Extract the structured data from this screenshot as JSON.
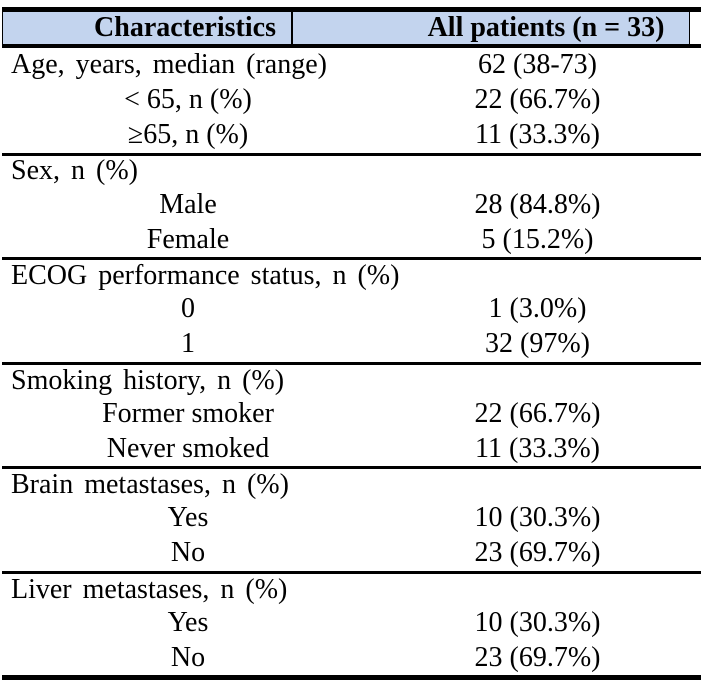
{
  "table": {
    "header": {
      "col1": "Characteristics",
      "col2": "All patients (n = 33)"
    },
    "sections": [
      {
        "title": "Age, years, median (range)",
        "title_value": "62 (38-73)",
        "items": [
          {
            "label": "< 65, n (%)",
            "value": "22 (66.7%)"
          },
          {
            "label": "≥65, n (%)",
            "value": "11 (33.3%)"
          }
        ]
      },
      {
        "title": "Sex, n (%)",
        "title_value": "",
        "items": [
          {
            "label": "Male",
            "value": "28 (84.8%)"
          },
          {
            "label": "Female",
            "value": "5 (15.2%)"
          }
        ]
      },
      {
        "title": "ECOG performance status, n (%)",
        "title_value": "",
        "items": [
          {
            "label": "0",
            "value": "1 (3.0%)"
          },
          {
            "label": "1",
            "value": "32 (97%)"
          }
        ]
      },
      {
        "title": "Smoking history, n (%)",
        "title_value": "",
        "items": [
          {
            "label": "Former smoker",
            "value": "22 (66.7%)"
          },
          {
            "label": "Never smoked",
            "value": "11 (33.3%)"
          }
        ]
      },
      {
        "title": "Brain metastases, n (%)",
        "title_value": "",
        "items": [
          {
            "label": "Yes",
            "value": "10 (30.3%)"
          },
          {
            "label": "No",
            "value": "23 (69.7%)"
          }
        ]
      },
      {
        "title": "Liver metastases, n (%)",
        "title_value": "",
        "items": [
          {
            "label": "Yes",
            "value": "10 (30.3%)"
          },
          {
            "label": "No",
            "value": "23 (69.7%)"
          }
        ]
      }
    ],
    "colors": {
      "header_bg": "#c3d4ee",
      "rule": "#000000",
      "text": "#000000"
    }
  }
}
